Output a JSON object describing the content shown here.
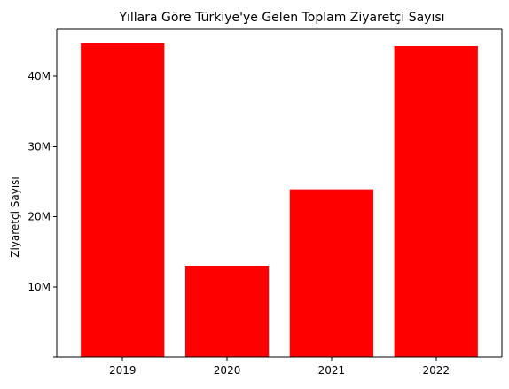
{
  "chart_data": {
    "type": "bar",
    "title": "Yıllara Göre Türkiye'ye Gelen Toplam Ziyaretçi Sayısı",
    "xlabel": "",
    "ylabel": "Ziyaretçi Sayısı",
    "categories": [
      "2019",
      "2020",
      "2021",
      "2022"
    ],
    "values": [
      44700000,
      13000000,
      23900000,
      44300000
    ],
    "ylim": [
      0,
      46700000
    ],
    "yticks": [
      0,
      10000000,
      20000000,
      30000000,
      40000000
    ],
    "ytick_labels": [
      "",
      "10M",
      "20M",
      "30M",
      "40M"
    ],
    "bar_color": "#ff0000",
    "grid": false,
    "legend": "none"
  }
}
